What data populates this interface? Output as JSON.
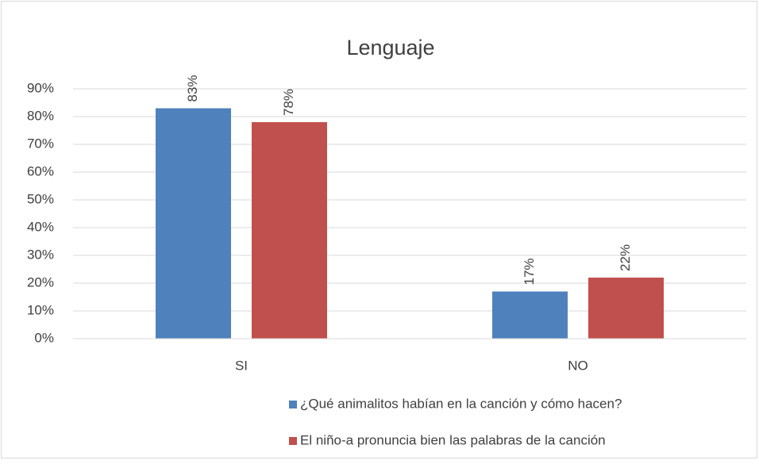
{
  "chart_data": {
    "type": "bar",
    "title": "Lenguaje",
    "categories": [
      "SI",
      "NO"
    ],
    "series": [
      {
        "name": "¿Qué animalitos habían en la canción y cómo hacen?",
        "color": "#4f81bd",
        "values": [
          83,
          17
        ],
        "value_labels": [
          "83%",
          "17%"
        ]
      },
      {
        "name": "El niño-a pronuncia bien las palabras de la canción",
        "color": "#c0504d",
        "values": [
          78,
          22
        ],
        "value_labels": [
          "78%",
          "22%"
        ]
      }
    ],
    "ylim": [
      0,
      90
    ],
    "yticks": [
      {
        "value": 0,
        "label": "0%"
      },
      {
        "value": 10,
        "label": "10%"
      },
      {
        "value": 20,
        "label": "20%"
      },
      {
        "value": 30,
        "label": "30%"
      },
      {
        "value": 40,
        "label": "40%"
      },
      {
        "value": 50,
        "label": "50%"
      },
      {
        "value": 60,
        "label": "60%"
      },
      {
        "value": 70,
        "label": "70%"
      },
      {
        "value": 80,
        "label": "80%"
      },
      {
        "value": 90,
        "label": "90%"
      }
    ],
    "grid": true,
    "legend": "bottom"
  }
}
